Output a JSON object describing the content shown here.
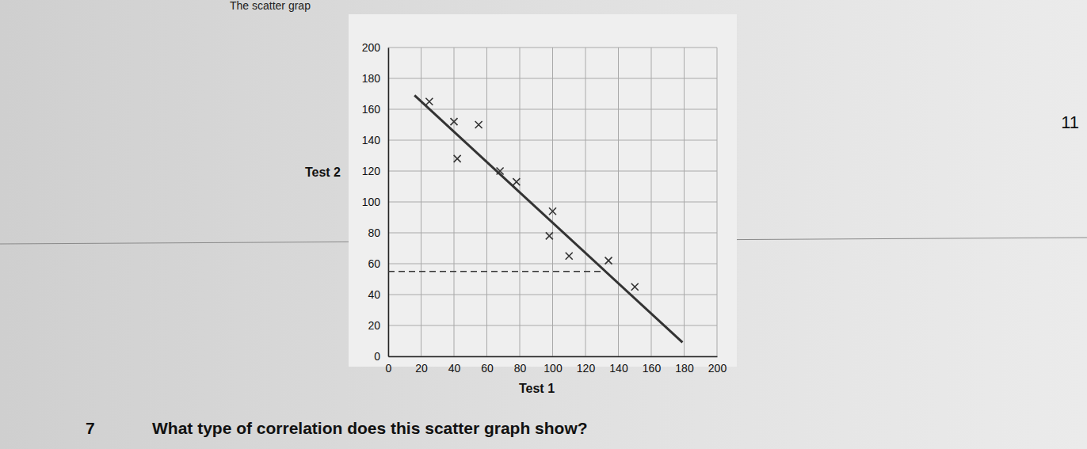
{
  "page": {
    "header": "The scatter grap",
    "page_number": "11",
    "question_number": "7",
    "question": "What type of correlation does this scatter graph show?"
  },
  "chart_data": {
    "type": "scatter",
    "x_label": "Test 1",
    "y_label": "Test 2",
    "x": [
      25,
      40,
      55,
      42,
      68,
      78,
      100,
      98,
      110,
      134,
      150
    ],
    "y": [
      165,
      152,
      150,
      128,
      120,
      113,
      94,
      78,
      65,
      62,
      45
    ],
    "xlim": [
      0,
      200
    ],
    "ylim": [
      0,
      200
    ],
    "xticks": [
      0,
      20,
      40,
      60,
      80,
      100,
      120,
      140,
      160,
      180,
      200
    ],
    "yticks": [
      0,
      20,
      40,
      60,
      80,
      100,
      120,
      140,
      160,
      180,
      200
    ],
    "grid": true,
    "marker": "x",
    "color": "#333333",
    "best_fit": {
      "x": [
        16,
        179
      ],
      "y": [
        169,
        9
      ]
    },
    "reading_line": {
      "x": [
        0,
        130
      ],
      "y": [
        55,
        55
      ]
    }
  }
}
